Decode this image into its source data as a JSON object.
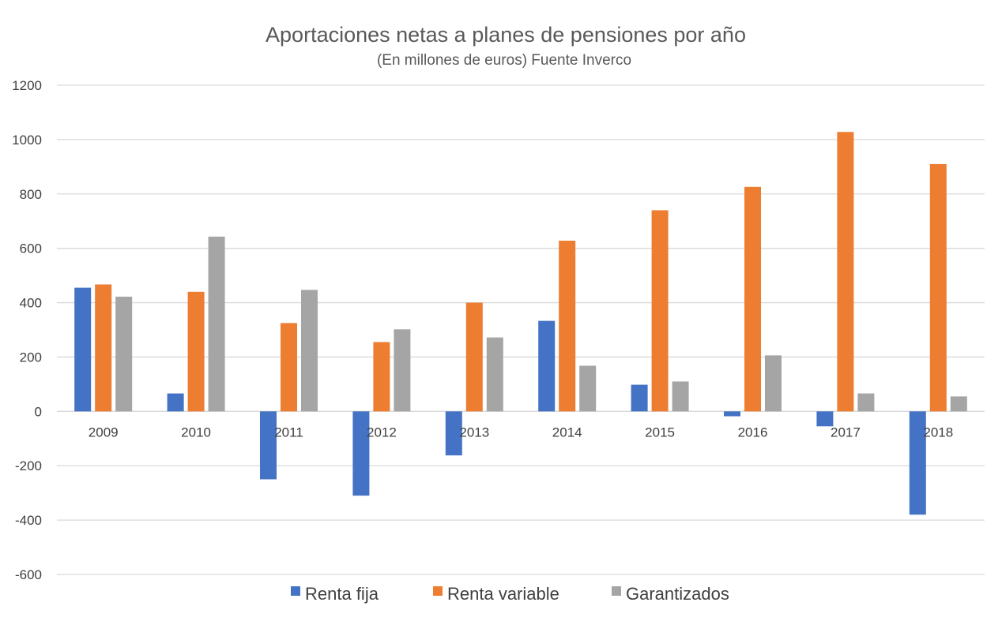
{
  "chart_data": {
    "type": "bar",
    "title": "Aportaciones netas a planes de pensiones por año",
    "subtitle": "(En millones de euros) Fuente Inverco",
    "xlabel": "",
    "ylabel": "",
    "categories": [
      "2009",
      "2010",
      "2011",
      "2012",
      "2013",
      "2014",
      "2015",
      "2016",
      "2017",
      "2018"
    ],
    "ylim": [
      -600,
      1200
    ],
    "yticks": [
      -600,
      -400,
      -200,
      0,
      200,
      400,
      600,
      800,
      1000,
      1200
    ],
    "ytick_labels": [
      "-600",
      "-400",
      "-200",
      "0",
      "200",
      "400",
      "600",
      "800",
      "1000",
      "1200"
    ],
    "grid": true,
    "legend_position": "bottom",
    "series": [
      {
        "name": "Renta fija",
        "color": "#4472c4",
        "values": [
          455,
          66,
          -250,
          -310,
          -162,
          333,
          98,
          -18,
          -55,
          -380
        ]
      },
      {
        "name": "Renta variable",
        "color": "#ed7d31",
        "values": [
          467,
          440,
          325,
          255,
          400,
          628,
          740,
          826,
          1028,
          910
        ]
      },
      {
        "name": "Garantizados",
        "color": "#a5a5a5",
        "values": [
          422,
          643,
          447,
          302,
          272,
          168,
          110,
          206,
          66,
          55
        ]
      }
    ]
  }
}
